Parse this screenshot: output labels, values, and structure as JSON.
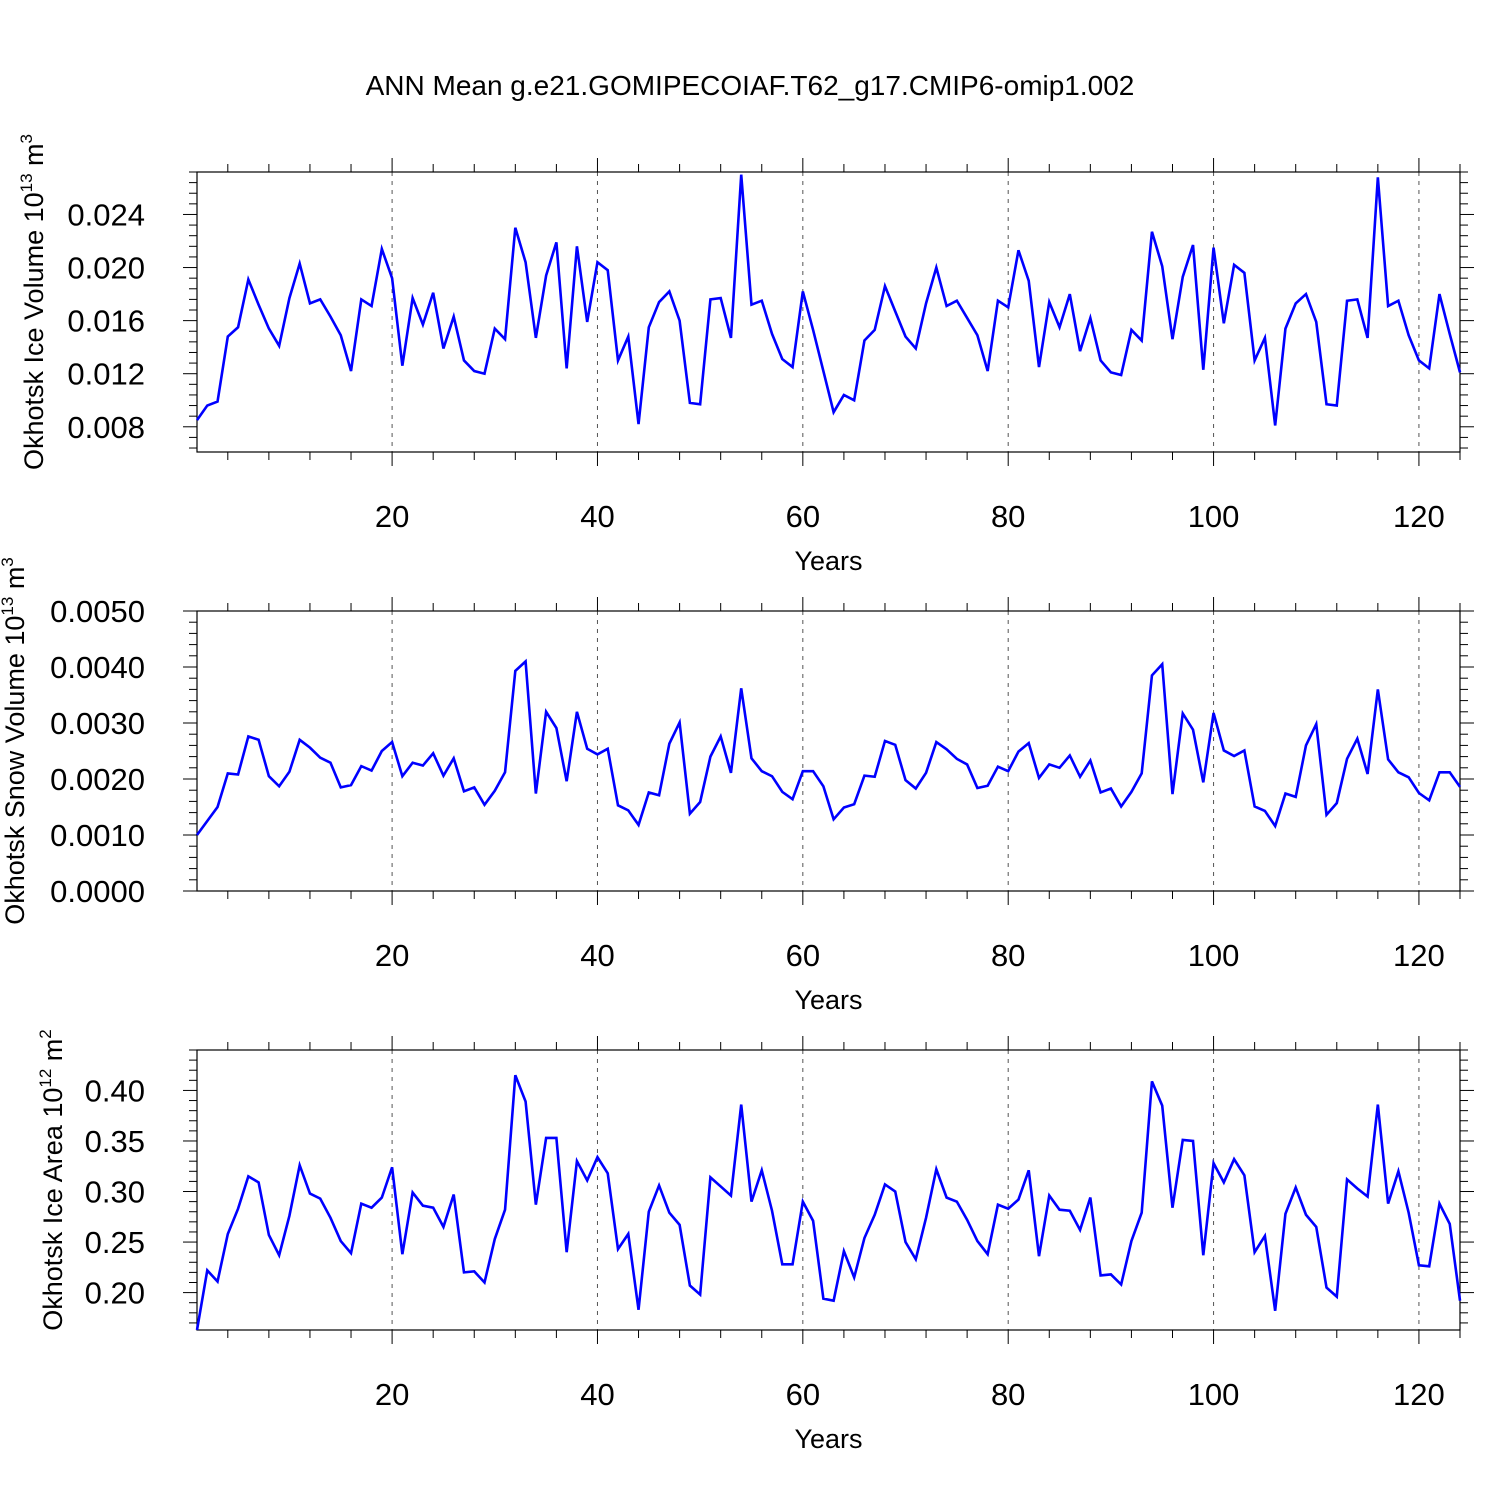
{
  "title": "ANN Mean g.e21.GOMIPECOIAF.T62_g17.CMIP6-omip1.002",
  "chart_data": [
    {
      "type": "line",
      "xlabel": "Years",
      "ylabel": "Okhotsk Ice Volume 10",
      "ylabel_exp": "13",
      "ylabel_unit": "m",
      "ylabel_unit_exp": "3",
      "xlim": [
        1,
        124
      ],
      "ylim": [
        0.0061,
        0.0272
      ],
      "xticks": [
        20,
        40,
        60,
        80,
        100,
        120
      ],
      "yticks": [
        0.008,
        0.012,
        0.016,
        0.02,
        0.024
      ],
      "ytick_labels": [
        "0.008",
        "0.012",
        "0.016",
        "0.020",
        "0.024"
      ],
      "grid": "vertical dashed at x ticks",
      "line_color": "#0000ff",
      "x_start": 1,
      "values": [
        0.0085,
        0.0096,
        0.0099,
        0.0148,
        0.0155,
        0.0191,
        0.0172,
        0.0154,
        0.0141,
        0.0177,
        0.0203,
        0.0173,
        0.0176,
        0.0163,
        0.0149,
        0.0122,
        0.0176,
        0.0171,
        0.0214,
        0.0192,
        0.0126,
        0.0177,
        0.0157,
        0.0181,
        0.0139,
        0.0163,
        0.013,
        0.0122,
        0.012,
        0.0154,
        0.0146,
        0.023,
        0.0204,
        0.0147,
        0.0194,
        0.0219,
        0.0124,
        0.0216,
        0.0159,
        0.0204,
        0.0198,
        0.013,
        0.0148,
        0.0082,
        0.0155,
        0.0174,
        0.0182,
        0.016,
        0.0098,
        0.0097,
        0.0176,
        0.0177,
        0.0147,
        0.027,
        0.0172,
        0.0175,
        0.015,
        0.0131,
        0.0125,
        0.0182,
        0.0153,
        0.0122,
        0.0091,
        0.0104,
        0.01,
        0.0145,
        0.0153,
        0.0186,
        0.0167,
        0.0148,
        0.0139,
        0.0173,
        0.02,
        0.0171,
        0.0175,
        0.0162,
        0.0149,
        0.0122,
        0.0175,
        0.017,
        0.0213,
        0.019,
        0.0125,
        0.0174,
        0.0155,
        0.018,
        0.0137,
        0.0162,
        0.013,
        0.0121,
        0.0119,
        0.0153,
        0.0145,
        0.0227,
        0.0201,
        0.0146,
        0.0193,
        0.0217,
        0.0123,
        0.0215,
        0.0158,
        0.0202,
        0.0196,
        0.013,
        0.0147,
        0.0081,
        0.0154,
        0.0173,
        0.018,
        0.0159,
        0.0097,
        0.0096,
        0.0175,
        0.0176,
        0.0147,
        0.0268,
        0.0171,
        0.0175,
        0.0149,
        0.013,
        0.0124,
        0.018,
        0.015,
        0.0121
      ]
    },
    {
      "type": "line",
      "xlabel": "Years",
      "ylabel": "Okhotsk Snow Volume 10",
      "ylabel_exp": "13",
      "ylabel_unit": "m",
      "ylabel_unit_exp": "3",
      "xlim": [
        1,
        124
      ],
      "ylim": [
        0.0,
        0.005
      ],
      "xticks": [
        20,
        40,
        60,
        80,
        100,
        120
      ],
      "yticks": [
        0.0,
        0.001,
        0.002,
        0.003,
        0.004,
        0.005
      ],
      "ytick_labels": [
        "0.0000",
        "0.0010",
        "0.0020",
        "0.0030",
        "0.0040",
        "0.0050"
      ],
      "grid": "vertical dashed at x ticks",
      "line_color": "#0000ff",
      "x_start": 1,
      "values": [
        0.001,
        0.00125,
        0.0015,
        0.0021,
        0.00208,
        0.00276,
        0.0027,
        0.00205,
        0.00187,
        0.00213,
        0.0027,
        0.00256,
        0.00238,
        0.00229,
        0.00185,
        0.00189,
        0.00223,
        0.00215,
        0.0025,
        0.00266,
        0.00205,
        0.00229,
        0.00224,
        0.00246,
        0.00206,
        0.00237,
        0.00178,
        0.00185,
        0.00154,
        0.00179,
        0.00212,
        0.00393,
        0.0041,
        0.00174,
        0.0032,
        0.00291,
        0.00196,
        0.0032,
        0.00254,
        0.00244,
        0.00254,
        0.00153,
        0.00144,
        0.00118,
        0.00176,
        0.00171,
        0.00263,
        0.00301,
        0.00138,
        0.00159,
        0.0024,
        0.00276,
        0.00211,
        0.00362,
        0.00237,
        0.00214,
        0.00205,
        0.00177,
        0.00164,
        0.00214,
        0.00214,
        0.00187,
        0.00128,
        0.00149,
        0.00155,
        0.00206,
        0.00204,
        0.00268,
        0.00261,
        0.00198,
        0.00183,
        0.00211,
        0.00266,
        0.00253,
        0.00236,
        0.00226,
        0.00184,
        0.00188,
        0.00222,
        0.00214,
        0.00249,
        0.00264,
        0.00202,
        0.00226,
        0.0022,
        0.00242,
        0.00204,
        0.00233,
        0.00176,
        0.00183,
        0.00151,
        0.00177,
        0.0021,
        0.00385,
        0.00405,
        0.00173,
        0.00317,
        0.00288,
        0.00194,
        0.00318,
        0.00251,
        0.00241,
        0.00251,
        0.00151,
        0.00143,
        0.00116,
        0.00174,
        0.00168,
        0.0026,
        0.00298,
        0.00136,
        0.00157,
        0.00236,
        0.00272,
        0.00209,
        0.0036,
        0.00235,
        0.00212,
        0.00203,
        0.00175,
        0.00162,
        0.00212,
        0.00212,
        0.00186
      ]
    },
    {
      "type": "line",
      "xlabel": "Years",
      "ylabel": "Okhotsk Ice Area 10",
      "ylabel_exp": "12",
      "ylabel_unit": "m",
      "ylabel_unit_exp": "2",
      "xlim": [
        1,
        124
      ],
      "ylim": [
        0.163,
        0.44
      ],
      "xticks": [
        20,
        40,
        60,
        80,
        100,
        120
      ],
      "yticks": [
        0.2,
        0.25,
        0.3,
        0.35,
        0.4
      ],
      "ytick_labels": [
        "0.20",
        "0.25",
        "0.30",
        "0.35",
        "0.40"
      ],
      "grid": "vertical dashed at x ticks",
      "line_color": "#0000ff",
      "x_start": 1,
      "values": [
        0.163,
        0.222,
        0.211,
        0.258,
        0.283,
        0.315,
        0.309,
        0.257,
        0.237,
        0.276,
        0.326,
        0.298,
        0.293,
        0.274,
        0.251,
        0.239,
        0.288,
        0.284,
        0.294,
        0.324,
        0.238,
        0.299,
        0.286,
        0.284,
        0.265,
        0.297,
        0.22,
        0.221,
        0.21,
        0.253,
        0.282,
        0.415,
        0.389,
        0.287,
        0.353,
        0.353,
        0.24,
        0.33,
        0.311,
        0.334,
        0.318,
        0.243,
        0.258,
        0.183,
        0.28,
        0.306,
        0.279,
        0.267,
        0.207,
        0.198,
        0.314,
        0.305,
        0.296,
        0.386,
        0.29,
        0.321,
        0.281,
        0.228,
        0.228,
        0.29,
        0.271,
        0.194,
        0.192,
        0.241,
        0.215,
        0.254,
        0.277,
        0.307,
        0.3,
        0.25,
        0.233,
        0.274,
        0.322,
        0.294,
        0.29,
        0.272,
        0.251,
        0.238,
        0.287,
        0.283,
        0.292,
        0.321,
        0.236,
        0.296,
        0.282,
        0.281,
        0.262,
        0.294,
        0.217,
        0.218,
        0.208,
        0.251,
        0.279,
        0.409,
        0.385,
        0.284,
        0.351,
        0.35,
        0.237,
        0.328,
        0.309,
        0.332,
        0.316,
        0.24,
        0.256,
        0.182,
        0.278,
        0.304,
        0.277,
        0.265,
        0.205,
        0.196,
        0.312,
        0.303,
        0.295,
        0.386,
        0.288,
        0.32,
        0.279,
        0.227,
        0.226,
        0.288,
        0.268,
        0.192
      ]
    }
  ]
}
